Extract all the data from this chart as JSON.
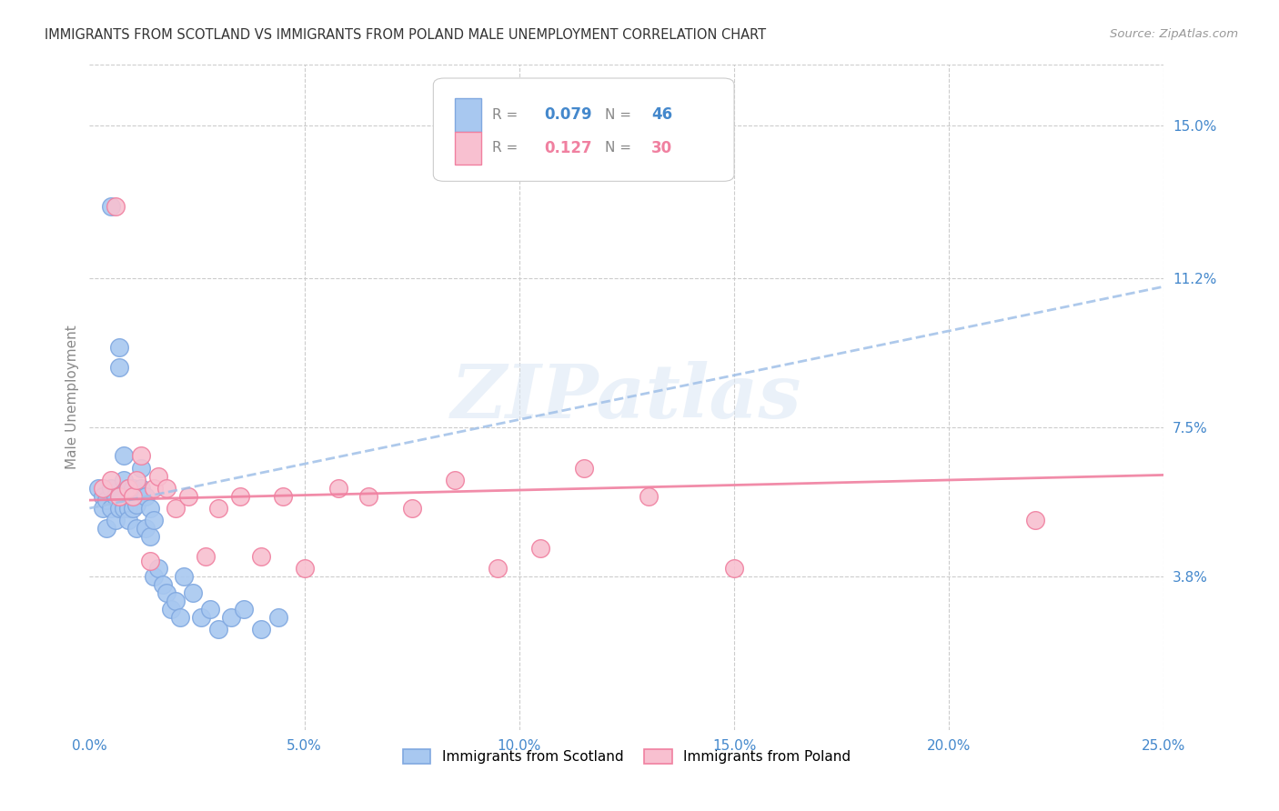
{
  "title": "IMMIGRANTS FROM SCOTLAND VS IMMIGRANTS FROM POLAND MALE UNEMPLOYMENT CORRELATION CHART",
  "source": "Source: ZipAtlas.com",
  "ylabel": "Male Unemployment",
  "xlim": [
    0.0,
    0.25
  ],
  "ylim": [
    0.0,
    0.165
  ],
  "xtick_labels": [
    "0.0%",
    "5.0%",
    "10.0%",
    "15.0%",
    "20.0%",
    "25.0%"
  ],
  "xtick_vals": [
    0.0,
    0.05,
    0.1,
    0.15,
    0.2,
    0.25
  ],
  "ytick_labels_right": [
    "3.8%",
    "7.5%",
    "11.2%",
    "15.0%"
  ],
  "ytick_vals_right": [
    0.038,
    0.075,
    0.112,
    0.15
  ],
  "grid_color": "#cccccc",
  "background": "#ffffff",
  "watermark": "ZIPatlas",
  "scotland_color": "#a8c8f0",
  "poland_color": "#f8c0d0",
  "scotland_edge_color": "#80a8e0",
  "poland_edge_color": "#f080a0",
  "scotland_line_color": "#a0c0e8",
  "poland_line_color": "#f080a0",
  "axis_label_color": "#4488cc",
  "title_color": "#333333",
  "source_color": "#999999",
  "legend_text_color": "#888888",
  "legend_R_scotland": "0.079",
  "legend_N_scotland": "46",
  "legend_R_poland": "0.127",
  "legend_N_poland": "30",
  "scotland_trend_intercept": 0.055,
  "scotland_trend_slope": 0.22,
  "poland_trend_intercept": 0.057,
  "poland_trend_slope": 0.025,
  "scotland_x": [
    0.002,
    0.003,
    0.003,
    0.004,
    0.004,
    0.005,
    0.005,
    0.005,
    0.006,
    0.006,
    0.007,
    0.007,
    0.007,
    0.008,
    0.008,
    0.008,
    0.009,
    0.009,
    0.009,
    0.01,
    0.01,
    0.011,
    0.011,
    0.012,
    0.012,
    0.013,
    0.013,
    0.014,
    0.014,
    0.015,
    0.015,
    0.016,
    0.017,
    0.018,
    0.019,
    0.02,
    0.021,
    0.022,
    0.024,
    0.026,
    0.028,
    0.03,
    0.033,
    0.036,
    0.04,
    0.044
  ],
  "scotland_y": [
    0.06,
    0.058,
    0.055,
    0.05,
    0.057,
    0.055,
    0.06,
    0.13,
    0.058,
    0.052,
    0.095,
    0.09,
    0.055,
    0.068,
    0.062,
    0.055,
    0.06,
    0.055,
    0.052,
    0.06,
    0.055,
    0.05,
    0.056,
    0.06,
    0.065,
    0.058,
    0.05,
    0.055,
    0.048,
    0.052,
    0.038,
    0.04,
    0.036,
    0.034,
    0.03,
    0.032,
    0.028,
    0.038,
    0.034,
    0.028,
    0.03,
    0.025,
    0.028,
    0.03,
    0.025,
    0.028
  ],
  "poland_x": [
    0.003,
    0.005,
    0.006,
    0.007,
    0.009,
    0.01,
    0.011,
    0.012,
    0.014,
    0.015,
    0.016,
    0.018,
    0.02,
    0.023,
    0.027,
    0.03,
    0.035,
    0.04,
    0.045,
    0.05,
    0.058,
    0.065,
    0.075,
    0.085,
    0.095,
    0.105,
    0.115,
    0.13,
    0.15,
    0.22
  ],
  "poland_y": [
    0.06,
    0.062,
    0.13,
    0.058,
    0.06,
    0.058,
    0.062,
    0.068,
    0.042,
    0.06,
    0.063,
    0.06,
    0.055,
    0.058,
    0.043,
    0.055,
    0.058,
    0.043,
    0.058,
    0.04,
    0.06,
    0.058,
    0.055,
    0.062,
    0.04,
    0.045,
    0.065,
    0.058,
    0.04,
    0.052
  ]
}
